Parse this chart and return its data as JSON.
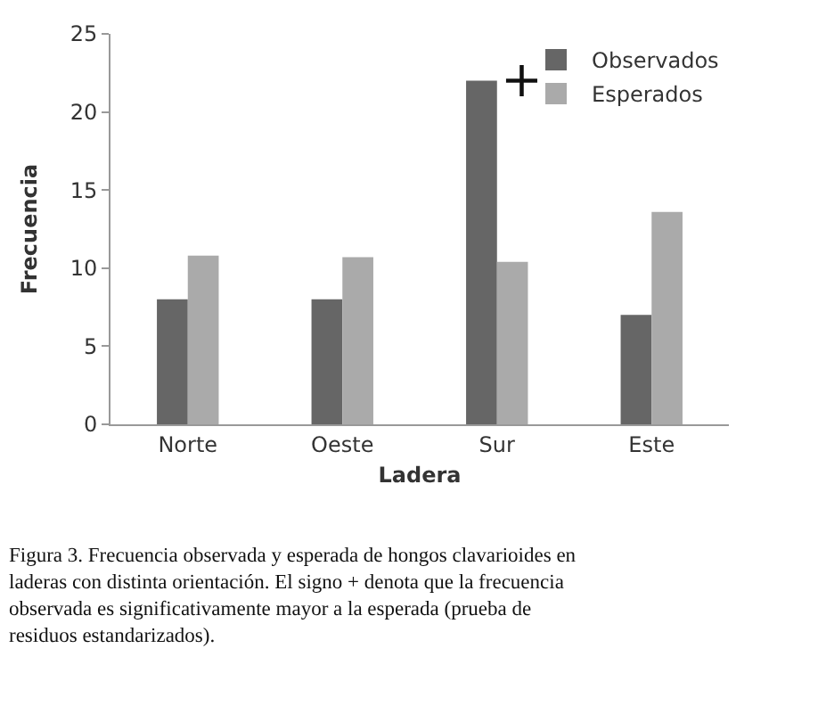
{
  "chart_data": {
    "type": "bar",
    "xlabel": "Ladera",
    "ylabel": "Frecuencia",
    "categories": [
      "Norte",
      "Oeste",
      "Sur",
      "Este"
    ],
    "series": [
      {
        "name": "Observados",
        "color": "#666666",
        "values": [
          8,
          8,
          22,
          7
        ]
      },
      {
        "name": "Esperados",
        "color": "#aaaaaa",
        "values": [
          10.8,
          10.7,
          10.4,
          13.6
        ]
      }
    ],
    "ylim": [
      0,
      25
    ],
    "yticks": [
      0,
      5,
      10,
      15,
      20,
      25
    ],
    "legend": "top right",
    "annotations": [
      "+",
      "Figura 3. Frecuencia observada y esperada de hongos clavarioides en laderas con distinta orientación. El signo + denota que la frecuencia observada es significativamente mayor a la esperada (prueba de residuos estandarizados)."
    ]
  }
}
